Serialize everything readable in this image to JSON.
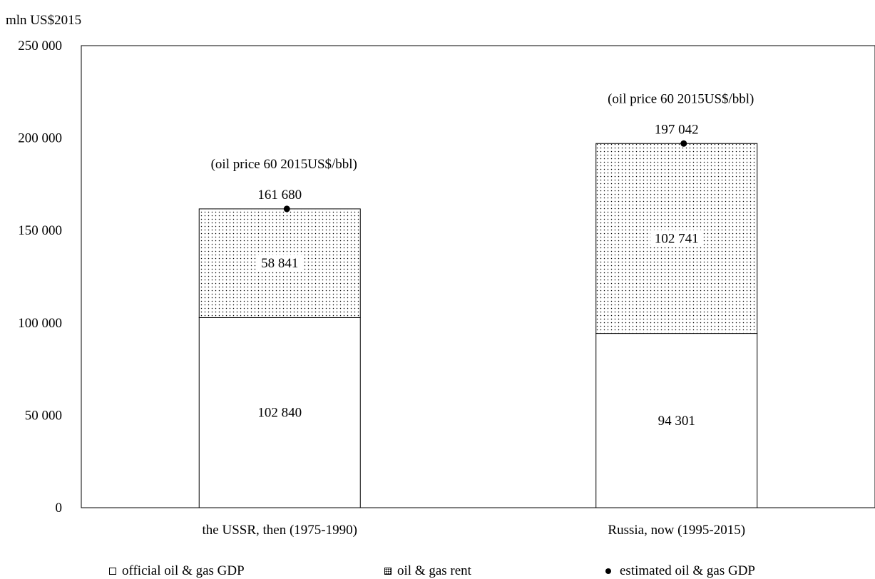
{
  "chart_data": {
    "type": "bar",
    "stacked": true,
    "unit_label": "mln US$2015",
    "ylim": [
      0,
      250000
    ],
    "yticks": [
      0,
      50000,
      100000,
      150000,
      200000,
      250000
    ],
    "ytick_labels": [
      "0",
      "50 000",
      "100 000",
      "150 000",
      "200 000",
      "250 000"
    ],
    "categories": [
      "the USSR, then (1975-1990)",
      "Russia, now (1995-2015)"
    ],
    "series": [
      {
        "name": "official oil & gas GDP",
        "values": [
          102840,
          94301
        ],
        "labels": [
          "102 840",
          "94 301"
        ],
        "fill": "white"
      },
      {
        "name": "oil & gas rent",
        "values": [
          58841,
          102741
        ],
        "labels": [
          "58 841",
          "102 741"
        ],
        "fill": "dotted"
      }
    ],
    "markers": {
      "name": "estimated oil & gas GDP",
      "values": [
        161680,
        197042
      ],
      "labels": [
        "161 680",
        "197 042"
      ]
    },
    "annotations": [
      "(oil price 60 2015US$/bbl)",
      "(oil price 60 2015US$/bbl)"
    ],
    "grid": false,
    "legend_position": "bottom"
  },
  "legend": {
    "items": [
      {
        "label": "official oil & gas GDP",
        "icon": "open-square-icon"
      },
      {
        "label": "oil & gas rent",
        "icon": "dotted-square-icon"
      },
      {
        "label": "estimated oil & gas GDP",
        "icon": "filled-circle-icon"
      }
    ]
  },
  "colors": {
    "line": "#000000",
    "background": "#ffffff"
  }
}
